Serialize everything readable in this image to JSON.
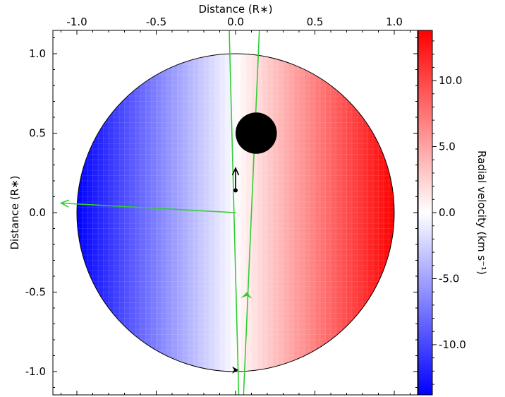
{
  "chart_data": {
    "type": "heatmap",
    "title": "",
    "xlabel": "Distance (R∗)",
    "ylabel": "Distance (R∗)",
    "xlim": [
      -1.15,
      1.15
    ],
    "ylim": [
      -1.15,
      1.15
    ],
    "x_ticks": [
      {
        "value": -1.0,
        "label": "-1.0"
      },
      {
        "value": -0.5,
        "label": "-0.5"
      },
      {
        "value": 0.0,
        "label": "0.0"
      },
      {
        "value": 0.5,
        "label": "0.5"
      },
      {
        "value": 1.0,
        "label": "1.0"
      }
    ],
    "y_ticks": [
      {
        "value": 1.0,
        "label": "1.0"
      },
      {
        "value": 0.5,
        "label": "0.5"
      },
      {
        "value": 0.0,
        "label": "0.0"
      },
      {
        "value": -0.5,
        "label": "-0.5"
      },
      {
        "value": -1.0,
        "label": "-1.0"
      }
    ],
    "colorbar": {
      "label": "Radial velocity (km s⁻¹)",
      "min": -13.8,
      "max": 13.8,
      "colors": [
        "#0000ff",
        "#ffffff",
        "#ff0000"
      ],
      "ticks": [
        {
          "value": 10.0,
          "label": "10.0"
        },
        {
          "value": 5.0,
          "label": "5.0"
        },
        {
          "value": 0.0,
          "label": "0.0"
        },
        {
          "value": -5.0,
          "label": "-5.0"
        },
        {
          "value": -10.0,
          "label": "-10.0"
        }
      ]
    },
    "stellar_disk": {
      "center": [
        0,
        0
      ],
      "radius": 1.0,
      "vsini": 13.8
    },
    "planet": {
      "x": 0.13,
      "y": 0.5,
      "radius": 0.13,
      "color": "#000000"
    },
    "transit_chord": {
      "from": [
        0.05,
        -1.15
      ],
      "to": [
        0.15,
        1.15
      ],
      "direction_marker": [
        0.07,
        -0.52
      ],
      "color": "#33cc33"
    },
    "stellar_spin_axis": {
      "from": [
        0.02,
        -1.15
      ],
      "to": [
        -0.04,
        1.15
      ],
      "color": "#33cc33"
    },
    "orbit_normal": {
      "from": [
        0.0,
        0.0
      ],
      "to": [
        -1.1,
        0.06
      ],
      "color": "#33cc33"
    },
    "sky_north_arrow": {
      "from": [
        0.0,
        0.14
      ],
      "to": [
        0.0,
        0.28
      ],
      "color": "#000000"
    },
    "rotation_marker": {
      "x": 0.0,
      "y": -0.99,
      "color": "#000000"
    }
  }
}
